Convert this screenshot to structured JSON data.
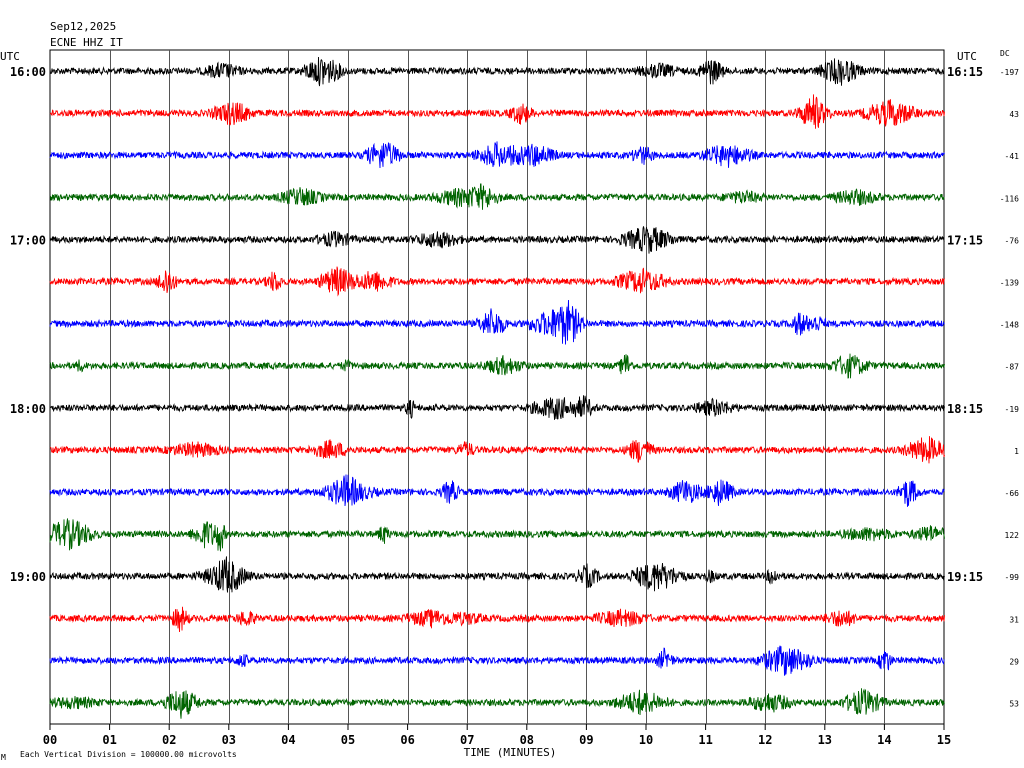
{
  "header": {
    "date": "Sep12,2025",
    "station": "ECNE HHZ IT",
    "utc_left": "UTC",
    "utc_right": "UTC",
    "dc_label": "DC"
  },
  "footer": {
    "xlabel": "TIME (MINUTES)",
    "scale_note": "Each Vertical Division = 100000.00 microvolts",
    "corner_mark": "M"
  },
  "colors": {
    "trace_cycle": [
      "#000000",
      "#ff0000",
      "#0000ff",
      "#006400"
    ],
    "grid": "#000000"
  },
  "chart_data": {
    "type": "line",
    "title": "",
    "xlabel": "TIME (MINUTES)",
    "xlim": [
      0,
      15
    ],
    "x_ticks": [
      "00",
      "01",
      "02",
      "03",
      "04",
      "05",
      "06",
      "07",
      "08",
      "09",
      "10",
      "11",
      "12",
      "13",
      "14",
      "15"
    ],
    "grid": true,
    "rows": [
      {
        "left": "16:00",
        "right": "16:15",
        "dc": "-197"
      },
      {
        "left": "",
        "right": "",
        "dc": "43"
      },
      {
        "left": "",
        "right": "",
        "dc": "-41"
      },
      {
        "left": "",
        "right": "",
        "dc": "-116"
      },
      {
        "left": "17:00",
        "right": "17:15",
        "dc": "-76"
      },
      {
        "left": "",
        "right": "",
        "dc": "-139"
      },
      {
        "left": "",
        "right": "",
        "dc": "-148"
      },
      {
        "left": "",
        "right": "",
        "dc": "-87"
      },
      {
        "left": "18:00",
        "right": "18:15",
        "dc": "-19"
      },
      {
        "left": "",
        "right": "",
        "dc": "1"
      },
      {
        "left": "",
        "right": "",
        "dc": "-66"
      },
      {
        "left": "",
        "right": "",
        "dc": "122"
      },
      {
        "left": "19:00",
        "right": "19:15",
        "dc": "-99"
      },
      {
        "left": "",
        "right": "",
        "dc": "31"
      },
      {
        "left": "",
        "right": "",
        "dc": "29"
      },
      {
        "left": "",
        "right": "",
        "dc": "53"
      }
    ]
  }
}
